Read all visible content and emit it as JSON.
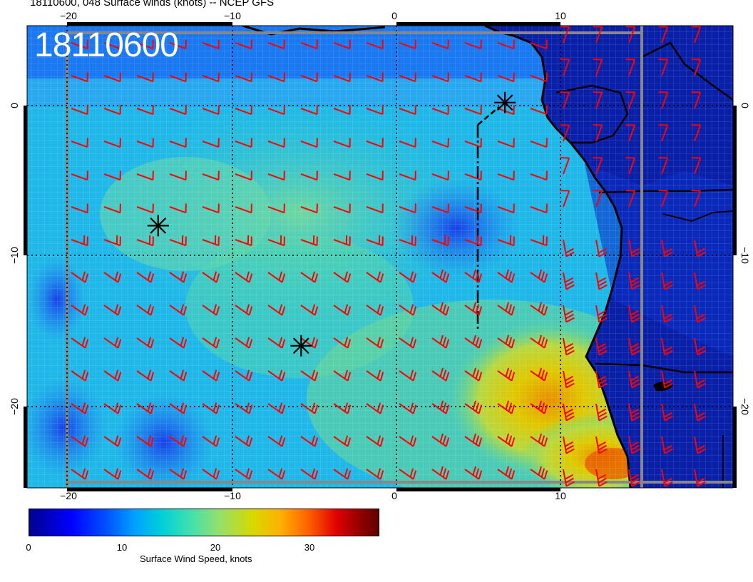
{
  "title": "18110600, 048 Surface winds (knots) -- NCEP GFS",
  "stamp": "18110600",
  "axes": {
    "x_ticks": [
      "−20",
      "−10",
      "0",
      "10"
    ],
    "y_ticks": [
      "0",
      "−10",
      "−20"
    ]
  },
  "colorbar": {
    "label": "Surface Wind Speed, knots",
    "ticks": [
      "0",
      "10",
      "20",
      "30"
    ],
    "range": [
      0,
      37
    ]
  },
  "markers": [
    {
      "name": "star",
      "lon": 6.6,
      "lat": 0.2
    },
    {
      "name": "star",
      "lon": -14.5,
      "lat": -8.0
    },
    {
      "name": "star",
      "lon": -5.8,
      "lat": -16.0
    }
  ],
  "colors": {
    "barb": "#ff0000",
    "land": "#0000a8",
    "ocean_low": "#1060ff",
    "ocean_mid": "#20d0c8",
    "ocean_high": "#e8d000",
    "coast": "#000000"
  }
}
